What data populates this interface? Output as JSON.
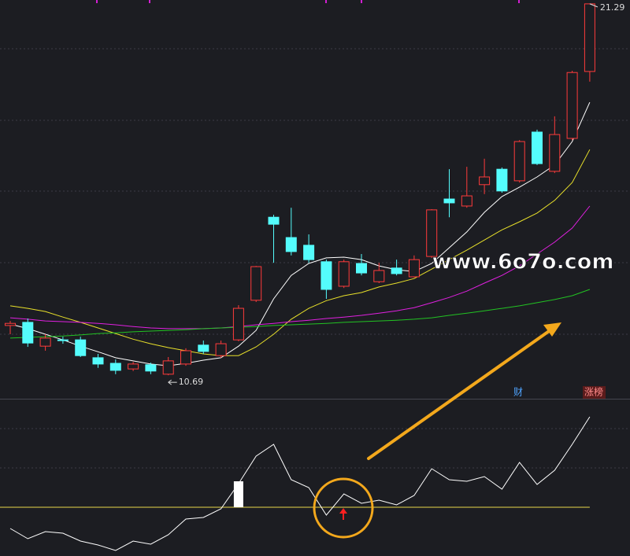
{
  "chart_data": [
    {
      "type": "candlestick",
      "open": [
        12.11,
        12.2,
        11.52,
        11.7,
        11.7,
        11.19,
        11.03,
        10.87,
        10.99,
        10.72,
        11.01,
        11.55,
        11.25,
        11.7,
        12.83,
        15.2,
        14.62,
        14.4,
        13.93,
        13.23,
        13.88,
        13.36,
        13.75,
        13.5,
        14.08,
        15.72,
        15.52,
        16.13,
        16.57,
        16.24,
        17.63,
        16.51,
        17.45,
        19.36
      ],
      "close": [
        12.17,
        11.61,
        11.75,
        11.68,
        11.25,
        11.01,
        10.83,
        11.01,
        10.81,
        11.1,
        11.39,
        11.37,
        11.59,
        12.6,
        13.79,
        15.0,
        14.22,
        13.99,
        13.14,
        13.93,
        13.61,
        13.68,
        13.59,
        13.99,
        15.41,
        15.61,
        15.81,
        16.35,
        15.95,
        17.36,
        16.73,
        17.56,
        19.33,
        21.29
      ],
      "high": [
        12.24,
        12.31,
        11.86,
        11.79,
        11.79,
        11.3,
        11.14,
        11.07,
        11.05,
        11.21,
        11.46,
        11.68,
        11.68,
        12.69,
        13.81,
        15.27,
        15.47,
        14.71,
        13.99,
        13.99,
        14.15,
        13.9,
        13.99,
        14.11,
        15.43,
        16.57,
        16.64,
        16.87,
        16.62,
        17.4,
        17.7,
        18.08,
        19.38,
        21.29
      ],
      "low": [
        11.86,
        11.5,
        11.39,
        11.59,
        11.21,
        10.9,
        10.72,
        10.81,
        10.72,
        10.69,
        10.96,
        11.3,
        11.19,
        11.66,
        12.78,
        13.9,
        14.11,
        13.9,
        12.87,
        13.18,
        13.54,
        13.32,
        13.54,
        13.48,
        14.04,
        15.2,
        15.47,
        15.86,
        15.9,
        16.19,
        16.69,
        16.46,
        17.4,
        19.07
      ],
      "up_color": "#ff3b3b",
      "down_color": "#54fcfc",
      "ylim": [
        10.02,
        21.4
      ],
      "series": [
        {
          "color": "#ffffff",
          "values": [
            12.15,
            12.02,
            11.86,
            11.7,
            11.52,
            11.36,
            11.19,
            11.1,
            11.01,
            10.96,
            11.03,
            11.12,
            11.19,
            11.52,
            11.97,
            12.87,
            13.54,
            13.88,
            14.04,
            14.06,
            13.99,
            13.81,
            13.7,
            13.65,
            13.88,
            14.33,
            14.78,
            15.34,
            15.79,
            16.06,
            16.35,
            16.69,
            17.36,
            18.48
          ]
        },
        {
          "color": "#e8e02a",
          "values": [
            12.67,
            12.6,
            12.51,
            12.35,
            12.2,
            12.04,
            11.88,
            11.72,
            11.59,
            11.48,
            11.39,
            11.3,
            11.25,
            11.25,
            11.5,
            11.86,
            12.29,
            12.6,
            12.82,
            12.96,
            13.05,
            13.21,
            13.32,
            13.45,
            13.72,
            13.99,
            14.26,
            14.55,
            14.84,
            15.07,
            15.32,
            15.68,
            16.19,
            17.13
          ]
        },
        {
          "color": "#e020e0",
          "values": [
            12.33,
            12.29,
            12.24,
            12.22,
            12.2,
            12.17,
            12.13,
            12.08,
            12.04,
            12.02,
            12.02,
            12.02,
            12.04,
            12.08,
            12.13,
            12.17,
            12.22,
            12.26,
            12.31,
            12.35,
            12.4,
            12.46,
            12.53,
            12.62,
            12.76,
            12.91,
            13.09,
            13.32,
            13.54,
            13.81,
            14.15,
            14.49,
            14.89,
            15.52
          ]
        },
        {
          "color": "#22c322",
          "values": [
            11.75,
            11.77,
            11.79,
            11.81,
            11.84,
            11.88,
            11.9,
            11.93,
            11.95,
            11.97,
            11.99,
            12.02,
            12.04,
            12.06,
            12.08,
            12.11,
            12.13,
            12.15,
            12.17,
            12.2,
            12.22,
            12.24,
            12.26,
            12.29,
            12.33,
            12.4,
            12.46,
            12.53,
            12.6,
            12.67,
            12.76,
            12.85,
            12.96,
            13.14
          ]
        }
      ],
      "watermark": "www.6o7o.com",
      "tags": [
        "财",
        "涨榜"
      ]
    },
    {
      "type": "line",
      "values": [
        17.5,
        11,
        15.5,
        14.5,
        9.5,
        7,
        3.5,
        9.5,
        7.5,
        13.5,
        23.5,
        24.5,
        30,
        46,
        63.5,
        71,
        48.5,
        43.5,
        26,
        39.5,
        33.5,
        35.5,
        32.5,
        38.5,
        55.5,
        48.5,
        47.5,
        50.5,
        42.5,
        59.5,
        45.5,
        54.5,
        71,
        88.5
      ],
      "color": "#ffffff",
      "ylim": [
        0,
        100
      ],
      "threshold": 31,
      "threshold_color": "#e8d84a",
      "bars": [
        null,
        null,
        null,
        null,
        null,
        null,
        null,
        null,
        null,
        null,
        null,
        null,
        null,
        47.5,
        null,
        null,
        null,
        null,
        null,
        null,
        null,
        null,
        null,
        null,
        null,
        null,
        null,
        null,
        null,
        null,
        null,
        null,
        null,
        null
      ],
      "bar_color": "#ffffff"
    }
  ]
}
